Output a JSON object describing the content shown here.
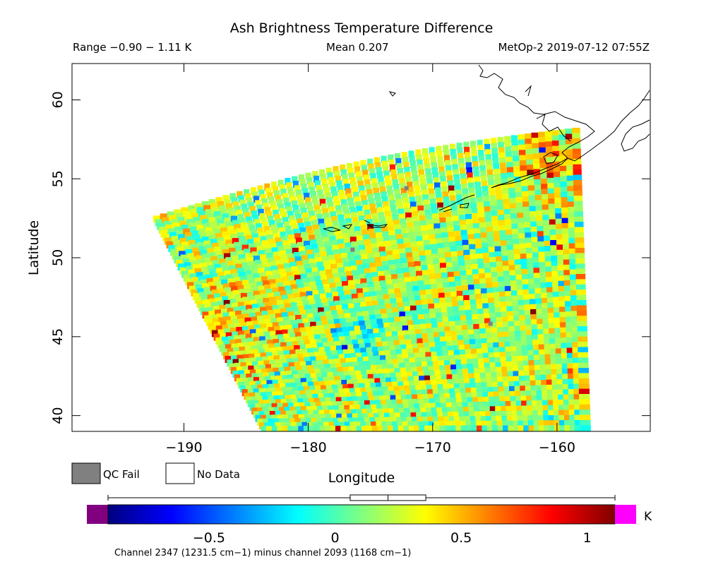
{
  "chart_data": {
    "type": "heatmap",
    "title": "Ash Brightness Temperature Difference",
    "range_text": "Range −0.90 − 1.11 K",
    "mean_text": "Mean 0.207",
    "source_text": "MetOp-2 2019-07-12 07:55Z",
    "xlabel": "Longitude",
    "ylabel": "Latitude",
    "xlim": [
      -199,
      -152.5
    ],
    "ylim": [
      39,
      62.3
    ],
    "x_ticks": [
      -190,
      -180,
      -170,
      -160
    ],
    "x_tick_labels": [
      "−190",
      "−180",
      "−170",
      "−160"
    ],
    "y_ticks": [
      40,
      45,
      50,
      55,
      60
    ],
    "y_tick_labels": [
      "40",
      "45",
      "50",
      "55",
      "60"
    ],
    "swath_corners_lonlat": [
      [
        -192.5,
        52.5
      ],
      [
        -158.2,
        58.2
      ],
      [
        -157.5,
        39
      ],
      [
        -183.5,
        39
      ]
    ],
    "colorbar": {
      "min": -0.9,
      "max": 1.11,
      "ticks": [
        -0.5,
        0,
        0.5,
        1
      ],
      "tick_labels": [
        "−0.5",
        "0",
        "0.5",
        "1"
      ],
      "unit": "K",
      "colors": [
        "#000080",
        "#0000ff",
        "#0080ff",
        "#00ffff",
        "#80ff80",
        "#ffff00",
        "#ff8000",
        "#ff0000",
        "#800000"
      ],
      "below_color": "#800080",
      "above_color": "#ff00ff",
      "boxplot": {
        "min": -0.9,
        "q1": 0.06,
        "median": 0.21,
        "q3": 0.36,
        "max": 1.11
      }
    },
    "legend": [
      {
        "label": "QC Fail",
        "color": "#808080"
      },
      {
        "label": "No Data",
        "color": "#ffffff"
      }
    ],
    "footer": "Channel 2347 (1231.5 cm−1) minus channel 2093 (1168 cm−1)"
  }
}
